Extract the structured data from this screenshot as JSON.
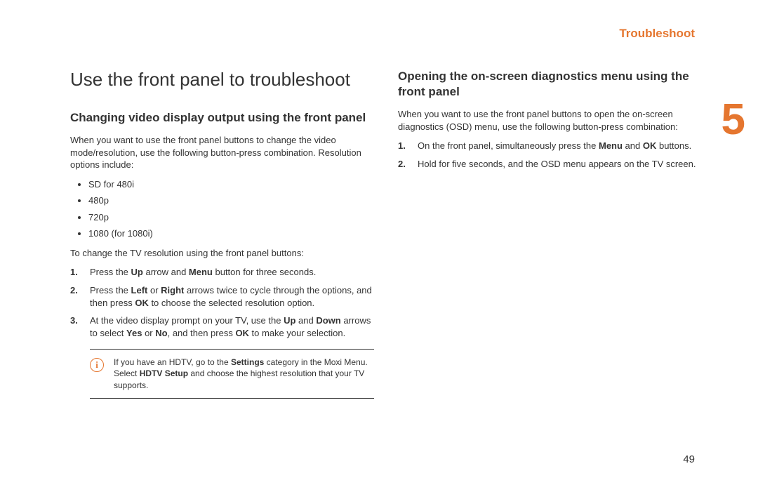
{
  "colors": {
    "accent": "#e5762f",
    "text": "#333333",
    "bg": "#ffffff"
  },
  "header": {
    "section": "Troubleshoot"
  },
  "chapter_number": "5",
  "page_number": "49",
  "left": {
    "title": "Use the front panel to troubleshoot",
    "heading": "Changing video display output using the front panel",
    "intro": "When you want to use the front panel buttons to change the video mode/resolution, use the following button-press combination. Resolution options include:",
    "bullets": [
      "SD for 480i",
      "480p",
      "720p",
      "1080 (for 1080i)"
    ],
    "lead2": "To change the TV resolution using the front panel buttons:",
    "steps_html": [
      "Press the <b>Up</b> arrow and <b>Menu</b> button for three seconds.",
      "Press the <b>Left</b> or <b>Right</b> arrows twice to cycle through the options, and then press <b>OK</b> to choose the selected resolution option.",
      "At the video display prompt on your TV, use the <b>Up</b> and <b>Down</b> arrows to select <b>Yes</b> or <b>No</b>, and then press <b>OK</b> to make your selection."
    ],
    "info_html": "If you have an HDTV, go to the <b>Settings</b> category in the Moxi Menu. Select <b>HDTV Setup</b> and choose the highest resolution that your TV supports."
  },
  "right": {
    "heading": "Opening the on-screen diagnostics menu using the front panel",
    "intro": "When you want to use the front panel buttons to open the on-screen diagnostics (OSD) menu, use the following button-press combination:",
    "steps_html": [
      "On the front panel, simultaneously press the <b>Menu</b> and <b>OK</b> buttons.",
      "Hold for five seconds, and the OSD menu appears on the TV screen."
    ]
  }
}
